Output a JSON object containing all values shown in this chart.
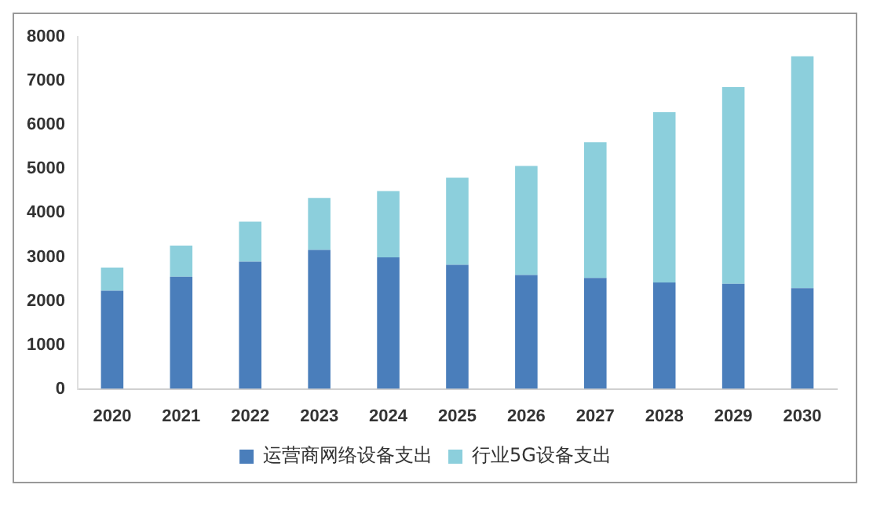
{
  "chart_data": {
    "type": "bar",
    "stacked": true,
    "categories": [
      "2020",
      "2021",
      "2022",
      "2023",
      "2024",
      "2025",
      "2026",
      "2027",
      "2028",
      "2029",
      "2030"
    ],
    "series": [
      {
        "name": "运营商网络设备支出",
        "color": "#4a7ebb",
        "values": [
          2230,
          2550,
          2890,
          3160,
          2990,
          2820,
          2590,
          2520,
          2420,
          2390,
          2290
        ]
      },
      {
        "name": "行业5G设备支出",
        "color": "#8ccfdc",
        "values": [
          530,
          710,
          910,
          1180,
          1510,
          1980,
          2480,
          3090,
          3870,
          4470,
          5270
        ]
      }
    ],
    "ylim": [
      0,
      8000
    ],
    "yticks": [
      0,
      1000,
      2000,
      3000,
      4000,
      5000,
      6000,
      7000,
      8000
    ],
    "grid": false,
    "legend": "bottom"
  }
}
